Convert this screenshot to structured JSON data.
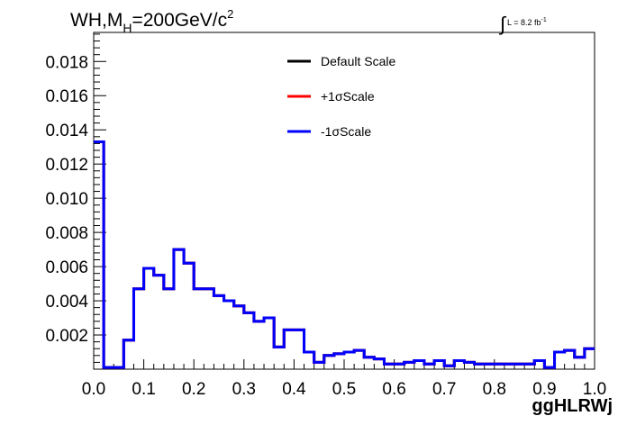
{
  "chart_data": {
    "type": "histogram",
    "title_prefix": "WH,M",
    "title_sub": "H",
    "title_main": "=200GeV/c",
    "title_sup": "2",
    "lumi_text": "L = 8.2 fb",
    "lumi_sup": "-1",
    "xlabel": "ggHLRWj",
    "ylabel": "",
    "xlim": [
      0.0,
      1.0
    ],
    "ylim": [
      0.0,
      0.0197
    ],
    "xticks": [
      "0.0",
      "0.1",
      "0.2",
      "0.3",
      "0.4",
      "0.5",
      "0.6",
      "0.7",
      "0.8",
      "0.9",
      "1.0"
    ],
    "yticks": [
      "0.002",
      "0.004",
      "0.006",
      "0.008",
      "0.010",
      "0.012",
      "0.014",
      "0.016",
      "0.018"
    ],
    "legend_position": "top-center",
    "bin_edges_start": 0.0,
    "bin_width": 0.02,
    "series": [
      {
        "name": "Default Scale",
        "color": "#000000",
        "values": [
          0.0133,
          0.0001,
          0.0001,
          0.0017,
          0.0047,
          0.0059,
          0.0055,
          0.0047,
          0.007,
          0.0062,
          0.0047,
          0.0047,
          0.0043,
          0.004,
          0.0037,
          0.0033,
          0.0028,
          0.003,
          0.0013,
          0.0023,
          0.0023,
          0.001,
          0.0004,
          0.0008,
          0.0009,
          0.001,
          0.0011,
          0.0007,
          0.0006,
          0.0003,
          0.0003,
          0.0004,
          0.0005,
          0.0003,
          0.0005,
          0.0002,
          0.0005,
          0.0004,
          0.0003,
          0.0003,
          0.0003,
          0.0003,
          0.0003,
          0.0003,
          0.0005,
          0.0001,
          0.001,
          0.0011,
          0.0007,
          0.0012,
          0.0012,
          0.0013,
          0.0011
        ]
      },
      {
        "name": "+1σScale",
        "color": "#ff0000",
        "values": [
          0.0133,
          0.0001,
          0.0001,
          0.0017,
          0.0047,
          0.0059,
          0.0055,
          0.0047,
          0.007,
          0.0062,
          0.0047,
          0.0047,
          0.0043,
          0.004,
          0.0037,
          0.0033,
          0.0028,
          0.003,
          0.0013,
          0.0023,
          0.0023,
          0.001,
          0.0004,
          0.0008,
          0.0009,
          0.001,
          0.0011,
          0.0007,
          0.0006,
          0.0003,
          0.0003,
          0.0004,
          0.0005,
          0.0003,
          0.0005,
          0.0002,
          0.0005,
          0.0004,
          0.0003,
          0.0003,
          0.0003,
          0.0003,
          0.0003,
          0.0003,
          0.0005,
          0.0001,
          0.001,
          0.0011,
          0.0007,
          0.0012,
          0.0012,
          0.0013,
          0.0011
        ]
      },
      {
        "name": "-1σScale",
        "color": "#0000ff",
        "values": [
          0.0133,
          0.0001,
          0.0001,
          0.0017,
          0.0047,
          0.0059,
          0.0055,
          0.0047,
          0.007,
          0.0062,
          0.0047,
          0.0047,
          0.0043,
          0.004,
          0.0037,
          0.0033,
          0.0028,
          0.003,
          0.0013,
          0.0023,
          0.0023,
          0.001,
          0.0004,
          0.0008,
          0.0009,
          0.001,
          0.0011,
          0.0007,
          0.0006,
          0.0003,
          0.0003,
          0.0004,
          0.0005,
          0.0003,
          0.0005,
          0.0002,
          0.0005,
          0.0004,
          0.0003,
          0.0003,
          0.0003,
          0.0003,
          0.0003,
          0.0003,
          0.0005,
          0.0001,
          0.001,
          0.0011,
          0.0007,
          0.0012,
          0.0012,
          0.0013,
          0.0011
        ]
      }
    ]
  }
}
